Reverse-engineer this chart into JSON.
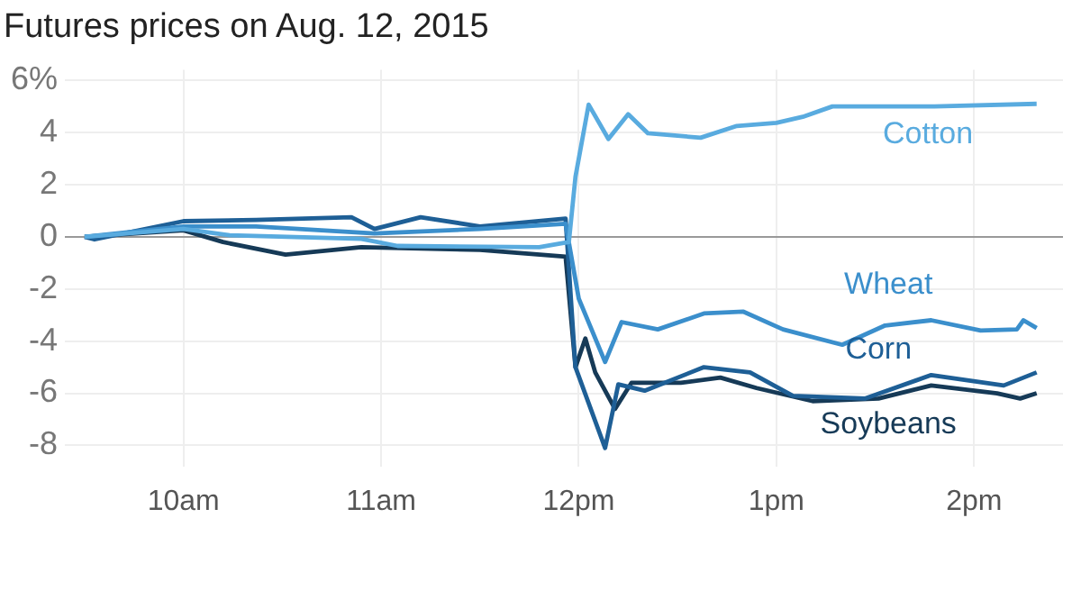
{
  "chart_data": {
    "type": "line",
    "title": "Futures prices on Aug. 12, 2015",
    "xlim": [
      "2015-08-12T09:24",
      "2015-08-12T14:27"
    ],
    "xticks": [
      {
        "value": "2015-08-12T10:00",
        "label": "10am"
      },
      {
        "value": "2015-08-12T11:00",
        "label": "11am"
      },
      {
        "value": "2015-08-12T12:00",
        "label": "12pm"
      },
      {
        "value": "2015-08-12T13:00",
        "label": "1pm"
      },
      {
        "value": "2015-08-12T14:00",
        "label": "2pm"
      }
    ],
    "ylim": [
      -8.8,
      6.4
    ],
    "yticks": [
      {
        "value": 6,
        "label": "6%"
      },
      4,
      2,
      0,
      -2,
      -4,
      -6,
      -8
    ],
    "grid": true,
    "legend": false,
    "marker": "none",
    "line_style": "solid",
    "series": [
      {
        "name": "Cotton",
        "color": "#59abdf",
        "x": [
          "2015-08-12T09:30",
          "2015-08-12T10:00",
          "2015-08-12T10:14",
          "2015-08-12T10:54",
          "2015-08-12T11:05",
          "2015-08-12T11:48",
          "2015-08-12T11:57",
          "2015-08-12T11:59",
          "2015-08-12T12:03",
          "2015-08-12T12:09",
          "2015-08-12T12:15",
          "2015-08-12T12:21",
          "2015-08-12T12:37",
          "2015-08-12T12:48",
          "2015-08-12T13:00",
          "2015-08-12T13:08",
          "2015-08-12T13:17",
          "2015-08-12T13:48",
          "2015-08-12T14:19"
        ],
        "values": [
          0,
          0.3,
          0.06,
          -0.08,
          -0.35,
          -0.4,
          -0.2,
          2.3,
          5.07,
          3.75,
          4.7,
          3.97,
          3.8,
          4.25,
          4.37,
          4.6,
          5.0,
          5.0,
          5.1
        ]
      },
      {
        "name": "Wheat",
        "color": "#3b8fcc",
        "x": [
          "2015-08-12T09:30",
          "2015-08-12T10:00",
          "2015-08-12T10:22",
          "2015-08-12T10:58",
          "2015-08-12T11:30",
          "2015-08-12T11:56",
          "2015-08-12T12:00",
          "2015-08-12T12:08",
          "2015-08-12T12:13",
          "2015-08-12T12:24",
          "2015-08-12T12:38",
          "2015-08-12T12:50",
          "2015-08-12T13:02",
          "2015-08-12T13:20",
          "2015-08-12T13:33",
          "2015-08-12T13:47",
          "2015-08-12T14:02",
          "2015-08-12T14:13",
          "2015-08-12T14:15",
          "2015-08-12T14:19"
        ],
        "values": [
          0,
          0.4,
          0.4,
          0.13,
          0.3,
          0.5,
          -2.37,
          -4.8,
          -3.27,
          -3.55,
          -2.94,
          -2.87,
          -3.55,
          -4.14,
          -3.4,
          -3.2,
          -3.59,
          -3.55,
          -3.2,
          -3.5
        ]
      },
      {
        "name": "Corn",
        "color": "#1e5f96",
        "x": [
          "2015-08-12T09:30",
          "2015-08-12T09:33",
          "2015-08-12T10:00",
          "2015-08-12T10:22",
          "2015-08-12T10:51",
          "2015-08-12T10:58",
          "2015-08-12T11:12",
          "2015-08-12T11:30",
          "2015-08-12T11:56",
          "2015-08-12T11:59",
          "2015-08-12T12:08",
          "2015-08-12T12:12",
          "2015-08-12T12:20",
          "2015-08-12T12:38",
          "2015-08-12T12:52",
          "2015-08-12T13:05",
          "2015-08-12T13:27",
          "2015-08-12T13:47",
          "2015-08-12T14:09",
          "2015-08-12T14:19"
        ],
        "values": [
          0,
          -0.1,
          0.6,
          0.65,
          0.75,
          0.3,
          0.75,
          0.4,
          0.7,
          -5.0,
          -8.1,
          -5.66,
          -5.9,
          -5.0,
          -5.2,
          -6.1,
          -6.2,
          -5.3,
          -5.7,
          -5.2
        ]
      },
      {
        "name": "Soybeans",
        "color": "#163a57",
        "x": [
          "2015-08-12T09:30",
          "2015-08-12T10:00",
          "2015-08-12T10:12",
          "2015-08-12T10:31",
          "2015-08-12T10:54",
          "2015-08-12T11:30",
          "2015-08-12T11:56",
          "2015-08-12T11:59",
          "2015-08-12T12:02",
          "2015-08-12T12:05",
          "2015-08-12T12:11",
          "2015-08-12T12:16",
          "2015-08-12T12:31",
          "2015-08-12T12:43",
          "2015-08-12T12:54",
          "2015-08-12T13:11",
          "2015-08-12T13:31",
          "2015-08-12T13:47",
          "2015-08-12T14:07",
          "2015-08-12T14:14",
          "2015-08-12T14:19"
        ],
        "values": [
          0,
          0.25,
          -0.2,
          -0.68,
          -0.4,
          -0.5,
          -0.76,
          -5.0,
          -3.9,
          -5.2,
          -6.6,
          -5.6,
          -5.6,
          -5.4,
          -5.8,
          -6.3,
          -6.2,
          -5.7,
          -6.0,
          -6.2,
          -6.0
        ]
      }
    ]
  }
}
